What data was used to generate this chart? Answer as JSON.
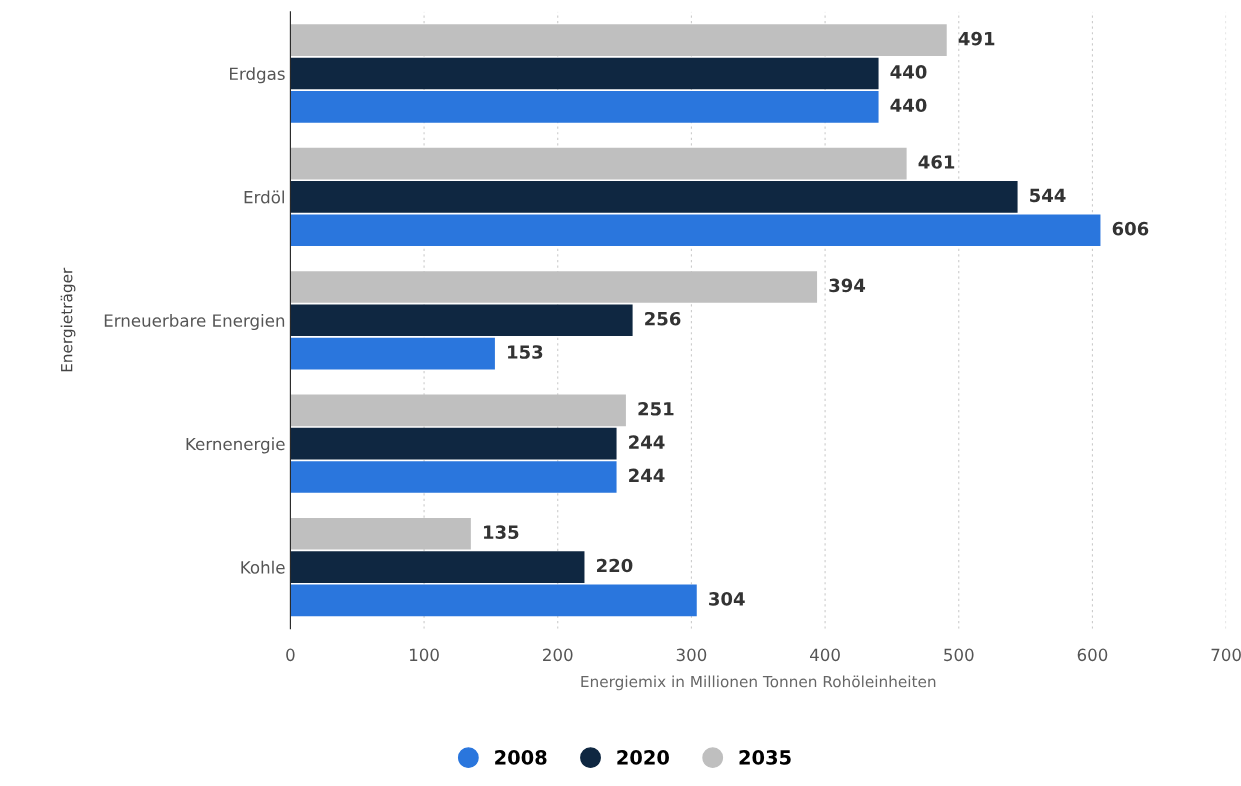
{
  "chart_data": {
    "type": "bar",
    "orientation": "horizontal",
    "xlabel": "Energiemix in Millionen Tonnen Rohöleinheiten",
    "ylabel": "Energieträger",
    "categories": [
      "Erdgas",
      "Erdöl",
      "Erneuerbare Energien",
      "Kernenergie",
      "Kohle"
    ],
    "series": [
      {
        "name": "2008",
        "color": "#2a76dd",
        "values": [
          440,
          606,
          153,
          244,
          304
        ]
      },
      {
        "name": "2020",
        "color": "#0f2741",
        "values": [
          440,
          544,
          256,
          244,
          220
        ]
      },
      {
        "name": "2035",
        "color": "#bfbfbf",
        "values": [
          491,
          461,
          394,
          251,
          135
        ]
      }
    ],
    "xlim": [
      0,
      700
    ],
    "xticks": [
      0,
      100,
      200,
      300,
      400,
      500,
      600,
      700
    ],
    "grid": "x",
    "legend": "bottom",
    "data_labels": true
  }
}
